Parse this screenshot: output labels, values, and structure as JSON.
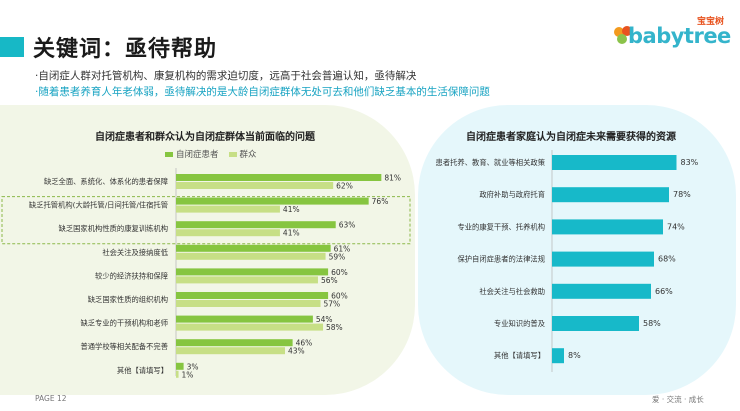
{
  "header": {
    "title": "关键词：亟待帮助",
    "line1": "·自闭症人群对托管机构、康复机构的需求迫切度，远高于社会普遍认知，亟待解决",
    "line2": "·随着患者养育人年老体弱，亟待解决的是大龄自闭症群体无处可去和他们缺乏基本的生活保障问题"
  },
  "logo": {
    "cn": "宝宝树",
    "text": "babytree"
  },
  "colors": {
    "accent": "#17b8c6",
    "series_patient": "#86c540",
    "series_public": "#c7df86",
    "bar_right": "#17b9c9",
    "highlight_border": "#8cb84a"
  },
  "chart_data": [
    {
      "type": "bar",
      "orientation": "horizontal",
      "title": "自闭症患者和群众认为自闭症群体当前面临的问题",
      "categories": [
        "缺乏全面、系统化、体系化的患者保障",
        "缺乏托管机构(大龄托管/日间托管/住宿托管",
        "缺乏国家机构性质的康复训练机构",
        "社会关注及接纳度低",
        "较少的经济扶持和保障",
        "缺乏国家性质的组织机构",
        "缺乏专业的干预机构和老师",
        "普通学校等相关配备不完善",
        "其他【请填写】"
      ],
      "series": [
        {
          "name": "自闭症患者",
          "values": [
            81,
            76,
            63,
            61,
            60,
            60,
            54,
            46,
            3
          ],
          "labels": [
            "81%",
            "76%",
            "63%",
            "61%",
            "60%",
            "60%",
            "54%",
            "46%",
            "3%"
          ]
        },
        {
          "name": "群众",
          "values": [
            62,
            41,
            41,
            59,
            56,
            57,
            58,
            43,
            1
          ],
          "labels": [
            "62%",
            "41%",
            "41%",
            "59%",
            "56%",
            "57%",
            "58%",
            "43%",
            "1%"
          ]
        }
      ],
      "highlighted_categories": [
        1,
        2
      ]
    },
    {
      "type": "bar",
      "orientation": "horizontal",
      "title": "自闭症患者家庭认为自闭症未来需要获得的资源",
      "categories": [
        "患者托养、教育、就业等相关政策",
        "政府补助与政府托育",
        "专业的康复干预、托养机构",
        "保护自闭症患者的法律法规",
        "社会关注与社会救助",
        "专业知识的普及",
        "其他【请填写】"
      ],
      "values": [
        83,
        78,
        74,
        68,
        66,
        58,
        8
      ],
      "labels": [
        "83%",
        "78%",
        "74%",
        "68%",
        "66%",
        "58%",
        "8%"
      ]
    }
  ],
  "footer": {
    "page": "PAGE 12",
    "slogan": "爱 · 交流 · 成长"
  }
}
